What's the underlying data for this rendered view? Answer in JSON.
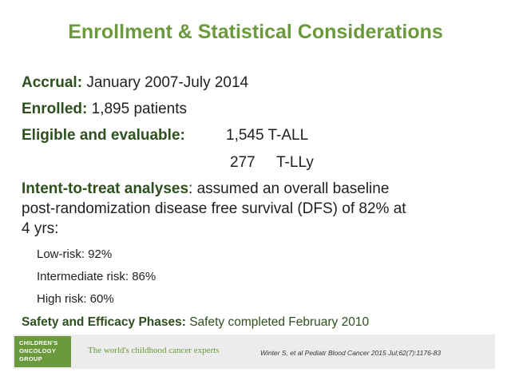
{
  "slide": {
    "title": "Enrollment & Statistical Considerations",
    "accrual": {
      "label": "Accrual:",
      "value": "January 2007-July 2014"
    },
    "enrolled": {
      "label": "Enrolled:",
      "value": "1,895 patients"
    },
    "eligible": {
      "label": "Eligible and evaluable:",
      "tall": "1,545 T-ALL",
      "tlly_count": "277",
      "tlly_label": "T-LLy"
    },
    "itt": {
      "label": "Intent-to-treat analyses",
      "text_line1": ": assumed an overall baseline",
      "text_line2": "post-randomization disease free survival (DFS) of 82% at",
      "text_line3": "4 yrs:"
    },
    "risk": {
      "low": "Low-risk: 92%",
      "intermediate": "Intermediate risk: 86%",
      "high": "High risk: 60%"
    },
    "phases": {
      "label": "Safety and Efficacy Phases:",
      "value": "Safety completed February 2010"
    }
  },
  "footer": {
    "logo_line1": "CHILDREN'S",
    "logo_line2": "ONCOLOGY",
    "logo_line3": "GROUP",
    "tagline": "The world's childhood cancer experts",
    "citation": "Winter S, et al Pediatr Blood Cancer 2015 Jul;62(7):1176-83"
  },
  "colors": {
    "accent_green": "#6a9a3b",
    "dark_green": "#2e4f1e",
    "footer_bg": "#ececec"
  }
}
